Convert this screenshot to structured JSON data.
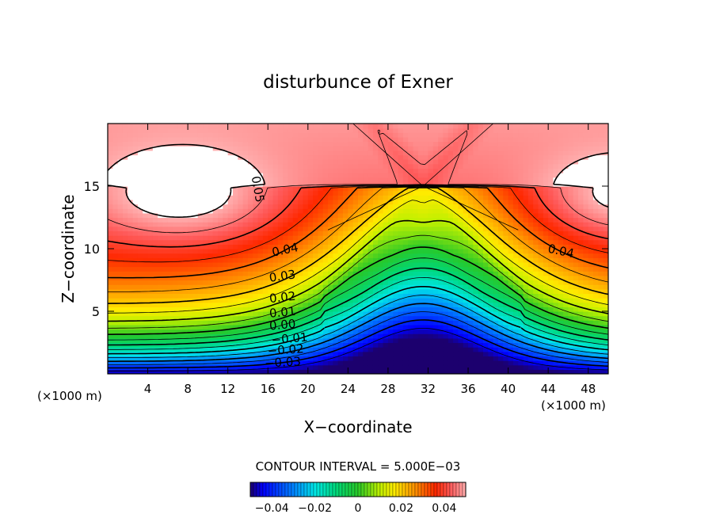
{
  "chart_data": {
    "type": "heatmap",
    "title": "disturbunce of Exner",
    "xlabel": "X−coordinate",
    "ylabel": "Z−coordinate",
    "x_unit_left": "(×1000 m)",
    "x_unit_right": "(×1000 m)",
    "xlim": [
      0,
      50
    ],
    "ylim": [
      0,
      20
    ],
    "x_ticks": [
      4,
      8,
      12,
      16,
      20,
      24,
      28,
      32,
      36,
      40,
      44,
      48
    ],
    "x_tick_labels": [
      "4",
      "8",
      "12",
      "16",
      "20",
      "24",
      "28",
      "32",
      "36",
      "40",
      "44",
      "48"
    ],
    "y_ticks": [
      5,
      10,
      15
    ],
    "y_tick_labels": [
      "5",
      "10",
      "15"
    ],
    "contour_interval_text": "CONTOUR INTERVAL = 5.000E−03",
    "contour_interval": 0.005,
    "contour_labels": [
      {
        "text": "0.05",
        "x": 14.6,
        "z": 14.7,
        "angle": 80
      },
      {
        "text": "0.04",
        "x": 17.8,
        "z": 9.6,
        "angle": -12
      },
      {
        "text": "0.04",
        "x": 45.2,
        "z": 9.5,
        "angle": 12
      },
      {
        "text": "0.03",
        "x": 17.5,
        "z": 7.5,
        "angle": -8
      },
      {
        "text": "0.02",
        "x": 17.5,
        "z": 5.8,
        "angle": -6
      },
      {
        "text": "0.01",
        "x": 17.5,
        "z": 4.6,
        "angle": -5
      },
      {
        "text": "0.00",
        "x": 17.5,
        "z": 3.6,
        "angle": -5
      },
      {
        "text": "−0.01",
        "x": 18.2,
        "z": 2.5,
        "angle": -5
      },
      {
        "text": "−0.02",
        "x": 17.8,
        "z": 1.6,
        "angle": -4
      },
      {
        "text": "−0.03",
        "x": 17.5,
        "z": 0.6,
        "angle": -3
      }
    ],
    "colorbar": {
      "range": [
        -0.05,
        0.05
      ],
      "tick_values": [
        -0.04,
        -0.02,
        0,
        0.02,
        0.04
      ],
      "tick_labels": [
        "−0.04",
        "−0.02",
        "0",
        "0.02",
        "0.04"
      ]
    },
    "field_summary": {
      "min_value": -0.05,
      "max_value": 0.05,
      "min_location": {
        "x": 31.5,
        "z": 0
      },
      "max_locations": [
        {
          "x": 8,
          "z": 14
        },
        {
          "x": 50,
          "z": 14
        }
      ],
      "saddle": {
        "x": 31.5,
        "z": 15
      }
    },
    "grid": false
  }
}
